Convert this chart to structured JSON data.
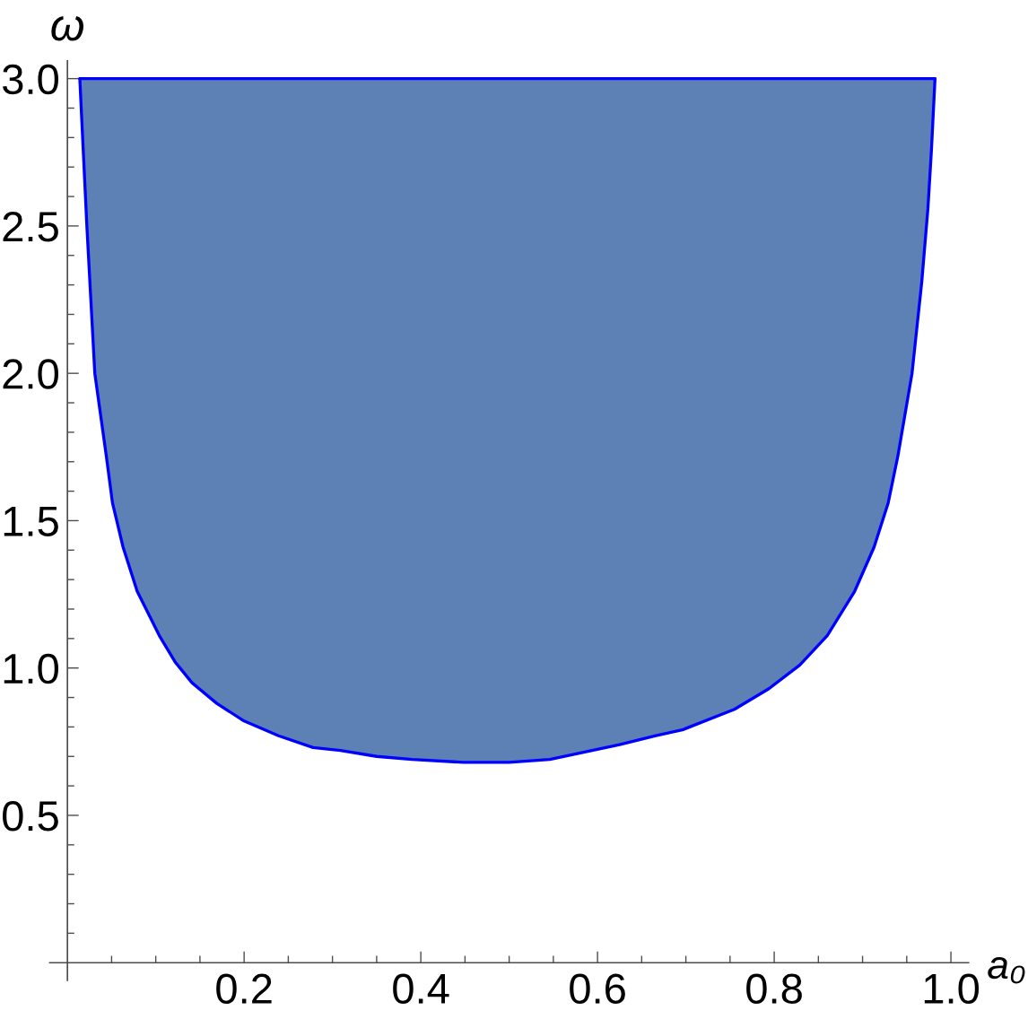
{
  "chart_data": {
    "type": "line",
    "xlabel": "a₀",
    "ylabel": "ω",
    "xlim": [
      -0.02,
      1.02
    ],
    "ylim": [
      -0.06,
      3.06
    ],
    "xticks": [
      {
        "value": 0.05,
        "label": null
      },
      {
        "value": 0.1,
        "label": null
      },
      {
        "value": 0.15,
        "label": null
      },
      0.2,
      {
        "value": 0.25,
        "label": null
      },
      {
        "value": 0.3,
        "label": null
      },
      {
        "value": 0.35,
        "label": null
      },
      0.4,
      {
        "value": 0.45,
        "label": null
      },
      {
        "value": 0.5,
        "label": null
      },
      {
        "value": 0.55,
        "label": null
      },
      0.6,
      {
        "value": 0.65,
        "label": null
      },
      {
        "value": 0.7,
        "label": null
      },
      {
        "value": 0.75,
        "label": null
      },
      0.8,
      {
        "value": 0.85,
        "label": null
      },
      {
        "value": 0.9,
        "label": null
      },
      {
        "value": 0.95,
        "label": null
      },
      {
        "value": 1.0,
        "label": "1.0"
      }
    ],
    "yticks": [
      {
        "value": 0.1,
        "label": null
      },
      {
        "value": 0.2,
        "label": null
      },
      {
        "value": 0.3,
        "label": null
      },
      {
        "value": 0.4,
        "label": null
      },
      0.5,
      {
        "value": 0.6,
        "label": null
      },
      {
        "value": 0.7,
        "label": null
      },
      {
        "value": 0.8,
        "label": null
      },
      {
        "value": 0.9,
        "label": null
      },
      {
        "value": 1.0,
        "label": "1.0"
      },
      {
        "value": 1.1,
        "label": null
      },
      {
        "value": 1.2,
        "label": null
      },
      {
        "value": 1.3,
        "label": null
      },
      {
        "value": 1.4,
        "label": null
      },
      1.5,
      {
        "value": 1.6,
        "label": null
      },
      {
        "value": 1.7,
        "label": null
      },
      {
        "value": 1.8,
        "label": null
      },
      {
        "value": 1.9,
        "label": null
      },
      {
        "value": 2.0,
        "label": "2.0"
      },
      {
        "value": 2.1,
        "label": null
      },
      {
        "value": 2.2,
        "label": null
      },
      {
        "value": 2.3,
        "label": null
      },
      {
        "value": 2.4,
        "label": null
      },
      2.5,
      {
        "value": 2.6,
        "label": null
      },
      {
        "value": 2.7,
        "label": null
      },
      {
        "value": 2.8,
        "label": null
      },
      {
        "value": 2.9,
        "label": null
      },
      {
        "value": 3.0,
        "label": "3.0"
      }
    ],
    "series": [
      {
        "color": "#0000ff",
        "x": [
          0.014,
          0.022,
          0.031,
          0.044,
          0.051,
          0.063,
          0.079,
          0.104,
          0.122,
          0.141,
          0.169,
          0.2,
          0.239,
          0.278,
          0.309,
          0.35,
          0.39,
          0.448,
          0.5,
          0.546,
          0.625,
          0.665,
          0.696,
          0.755,
          0.794,
          0.829,
          0.86,
          0.891,
          0.913,
          0.929,
          0.94,
          0.956,
          0.967,
          0.974,
          0.978,
          0.982
        ],
        "values": [
          3.0,
          2.5,
          2.0,
          1.72,
          1.56,
          1.41,
          1.26,
          1.11,
          1.02,
          0.95,
          0.88,
          0.82,
          0.77,
          0.73,
          0.72,
          0.7,
          0.69,
          0.68,
          0.68,
          0.69,
          0.74,
          0.77,
          0.79,
          0.86,
          0.93,
          1.01,
          1.11,
          1.26,
          1.41,
          1.56,
          1.72,
          2.0,
          2.31,
          2.56,
          2.76,
          3.0
        ],
        "lower": [
          3.0,
          2.5,
          2.0,
          1.72,
          1.56,
          1.41,
          1.26,
          1.11,
          1.02,
          0.95,
          0.88,
          0.82,
          0.77,
          0.73,
          0.72,
          0.7,
          0.69,
          0.68,
          0.68,
          0.69,
          0.74,
          0.77,
          0.79,
          0.86,
          0.93,
          1.01,
          1.11,
          1.26,
          1.41,
          1.56,
          1.72,
          2.0,
          2.31,
          2.56,
          2.76,
          3.0
        ],
        "upper": [
          3.0,
          3.0,
          3.0,
          3.0,
          3.0,
          3.0,
          3.0,
          3.0,
          3.0,
          3.0,
          3.0,
          3.0,
          3.0,
          3.0,
          3.0,
          3.0,
          3.0,
          3.0,
          3.0,
          3.0,
          3.0,
          3.0,
          3.0,
          3.0,
          3.0,
          3.0,
          3.0,
          3.0,
          3.0,
          3.0,
          3.0,
          3.0,
          3.0,
          3.0,
          3.0,
          3.0
        ]
      },
      {
        "color": "#0000ff",
        "x": [
          0.014,
          0.982
        ],
        "values": [
          3.0,
          3.0
        ]
      }
    ]
  }
}
